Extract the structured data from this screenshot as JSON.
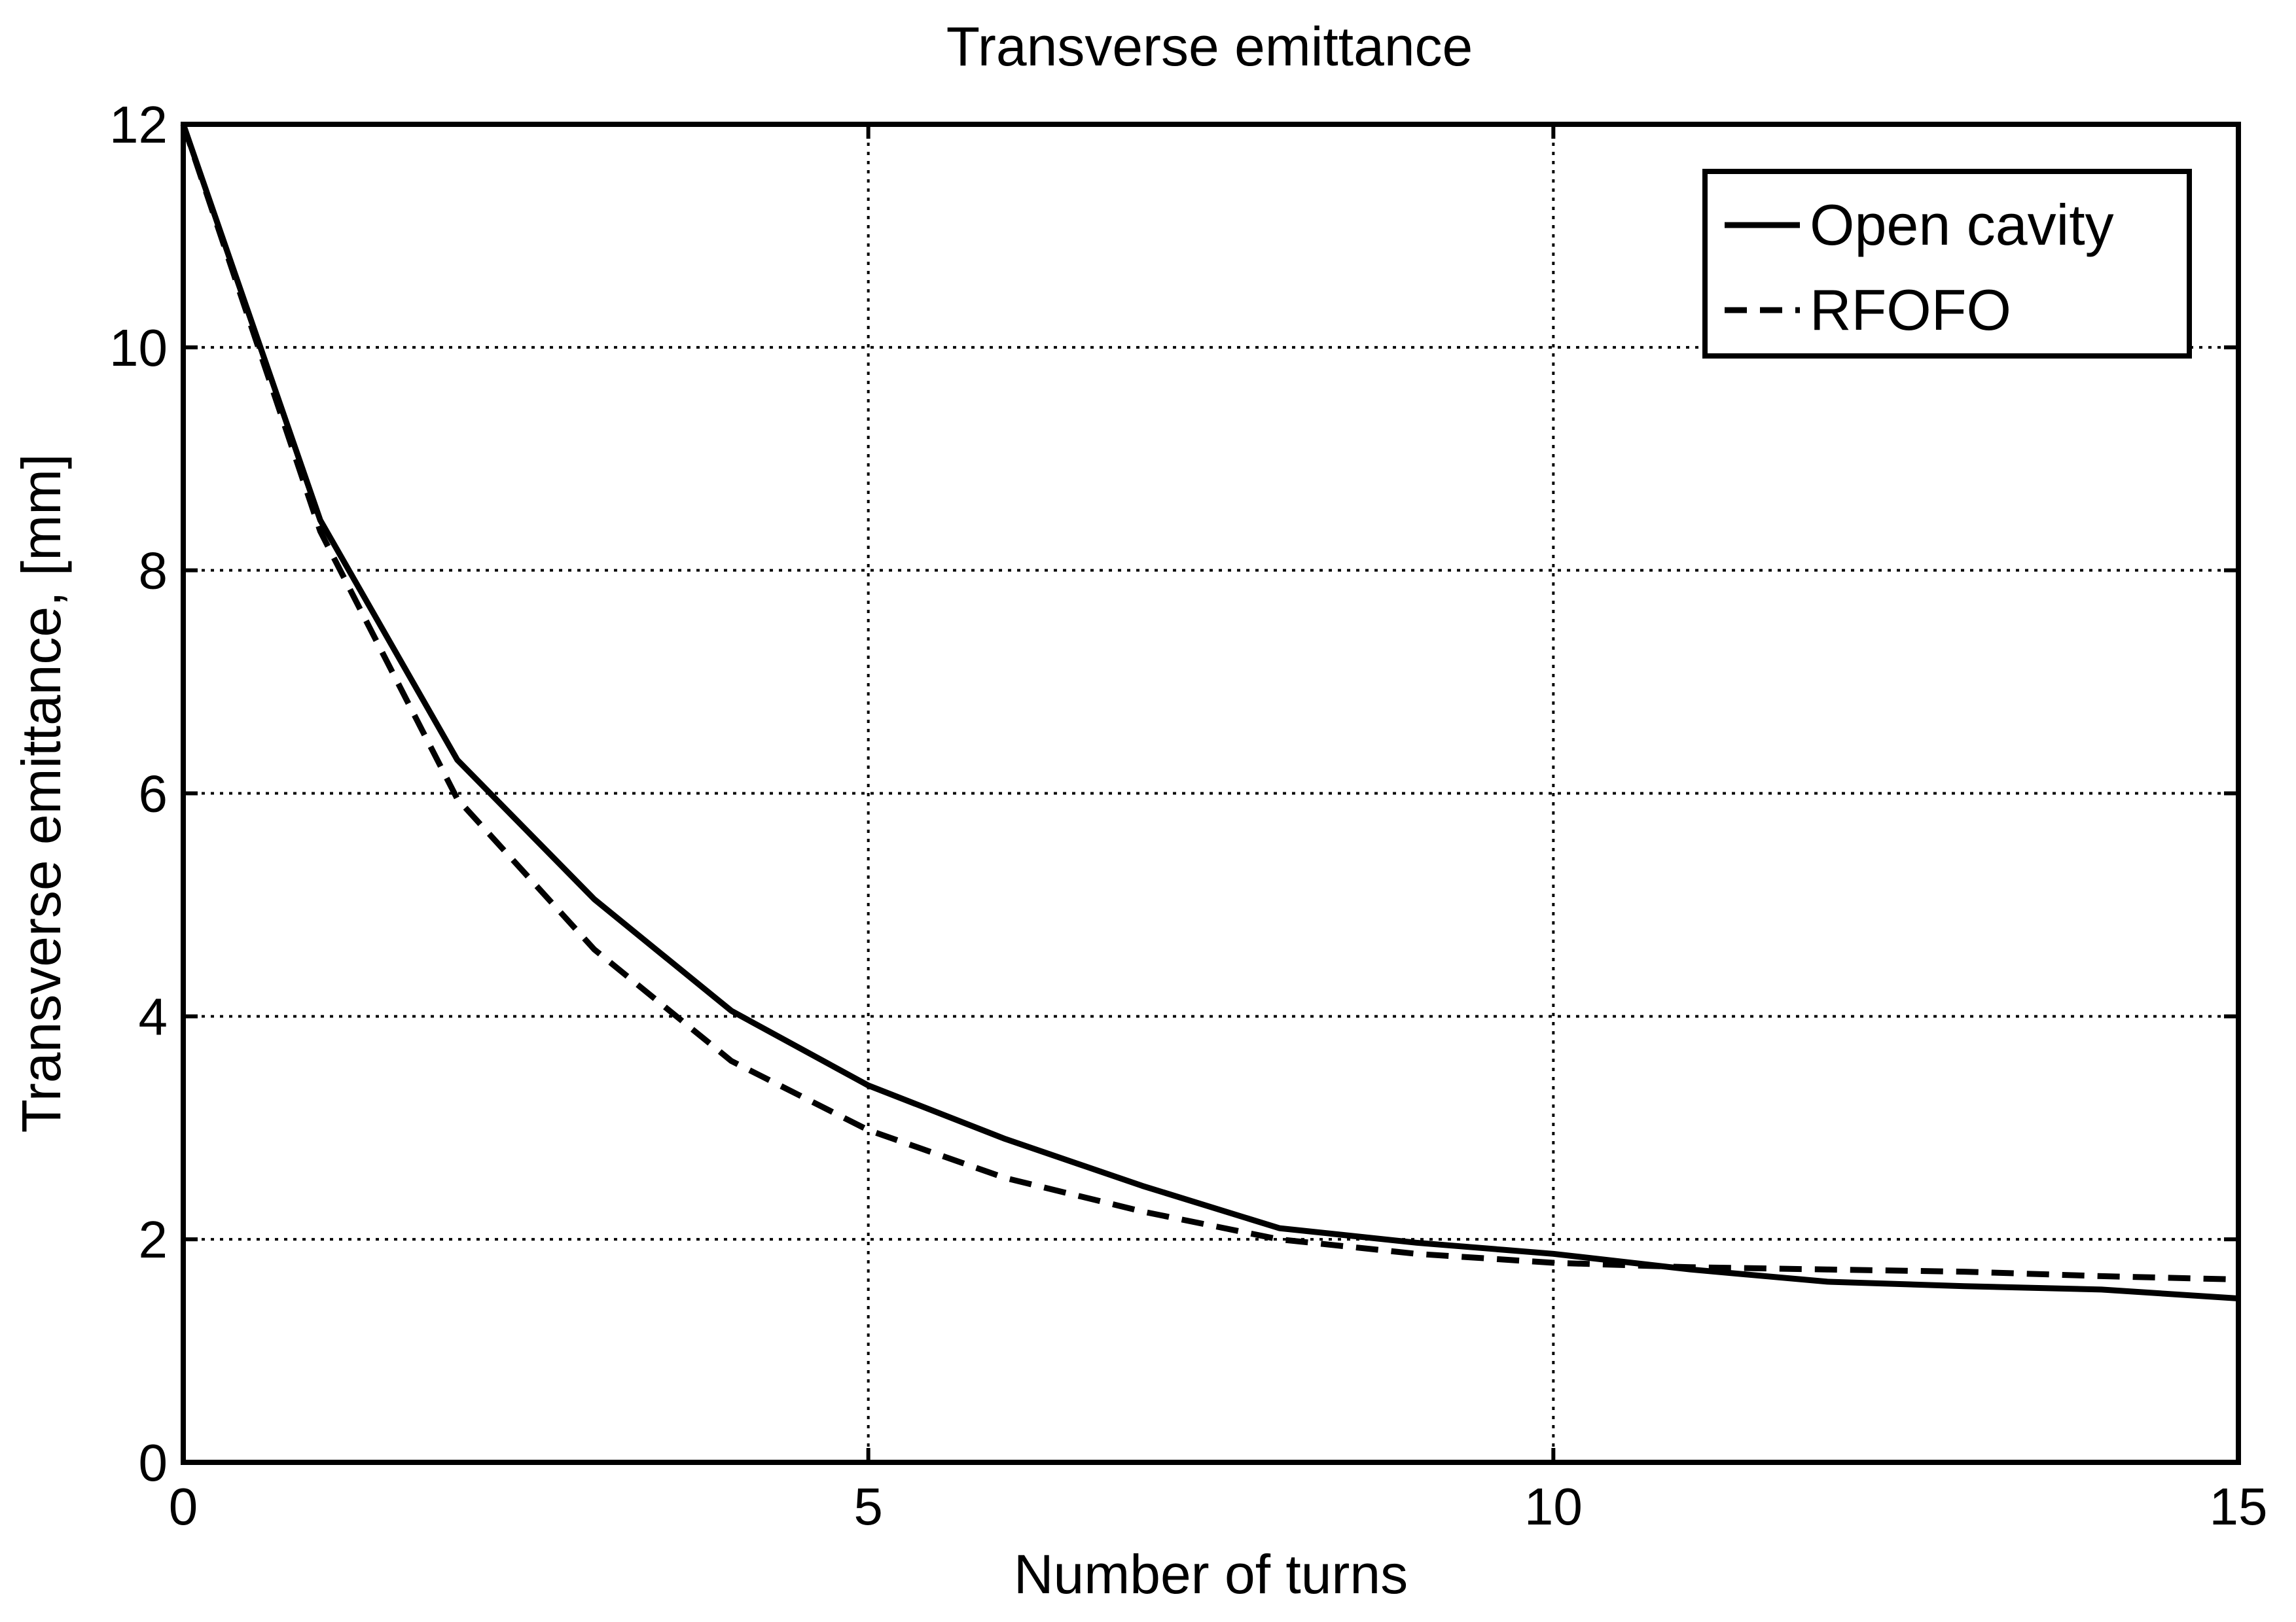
{
  "chart_data": {
    "type": "line",
    "title": "Transverse emittance",
    "xlabel": "Number of turns",
    "ylabel": "Transverse emittance, [mm]",
    "xlim": [
      0,
      15
    ],
    "ylim": [
      0,
      12
    ],
    "xticks": [
      0,
      5,
      10,
      15
    ],
    "yticks": [
      0,
      2,
      4,
      6,
      8,
      10,
      12
    ],
    "grid": true,
    "legend_position": "top-right",
    "series": [
      {
        "name": "Open cavity",
        "style": "solid",
        "color": "#000000",
        "x": [
          0,
          1,
          2,
          3,
          4,
          5,
          6,
          7,
          8,
          9,
          10,
          11,
          12,
          13,
          14,
          15
        ],
        "y": [
          12.0,
          8.45,
          6.3,
          5.05,
          4.05,
          3.38,
          2.9,
          2.48,
          2.1,
          1.97,
          1.87,
          1.73,
          1.62,
          1.58,
          1.55,
          1.47
        ]
      },
      {
        "name": "RFOFO",
        "style": "dashed",
        "color": "#000000",
        "x": [
          0,
          1,
          2,
          3,
          4,
          5,
          6,
          7,
          8,
          9,
          10,
          11,
          12,
          13,
          14,
          15
        ],
        "y": [
          12.0,
          8.35,
          5.95,
          4.6,
          3.6,
          2.98,
          2.55,
          2.25,
          2.0,
          1.87,
          1.79,
          1.75,
          1.73,
          1.71,
          1.67,
          1.64
        ]
      }
    ]
  }
}
